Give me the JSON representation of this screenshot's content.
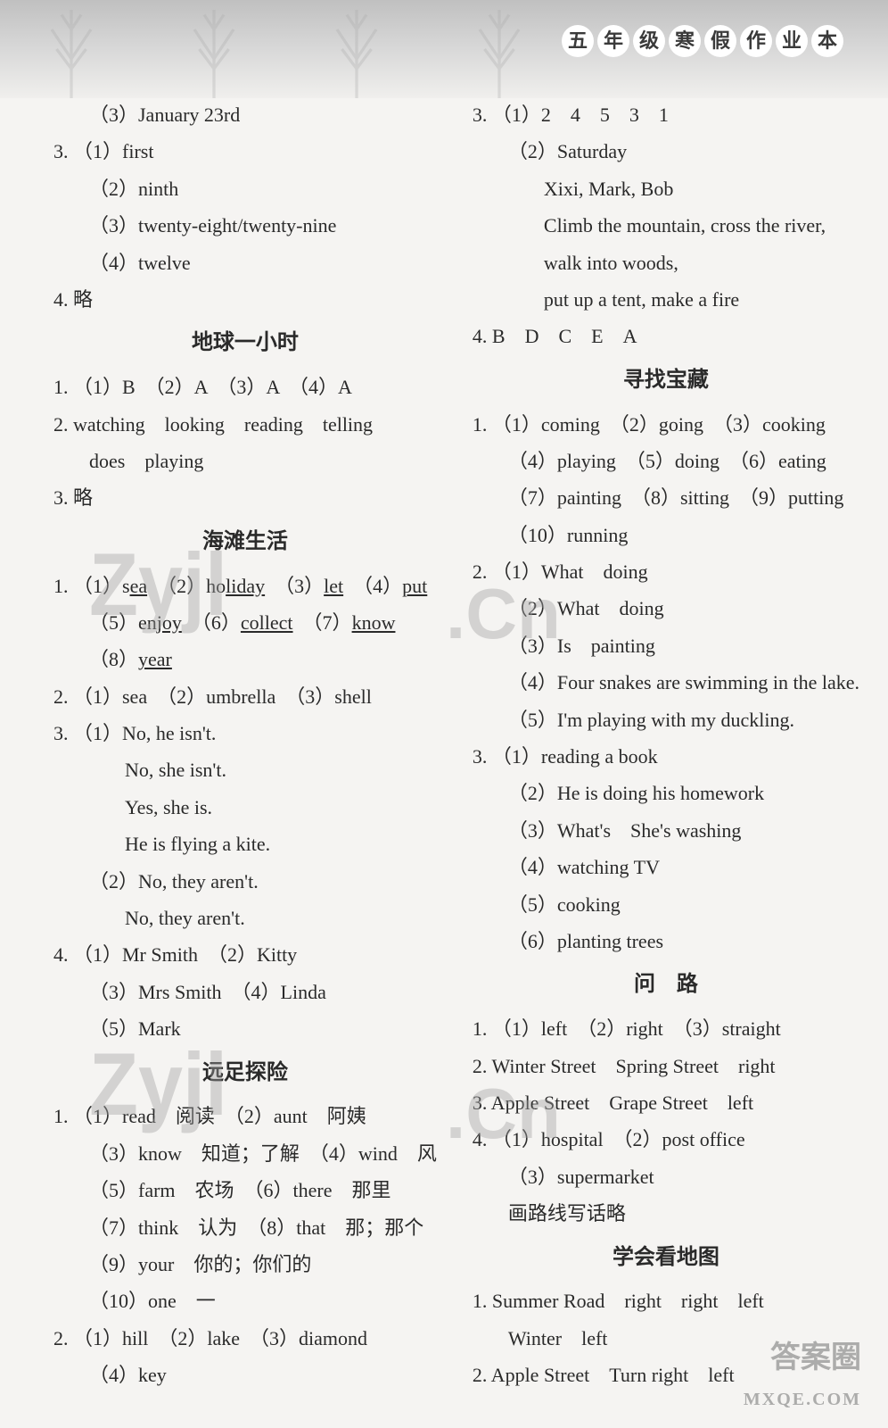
{
  "header": {
    "title_chars": [
      "五",
      "年",
      "级",
      "寒",
      "假",
      "作",
      "业",
      "本"
    ]
  },
  "left": {
    "lines": [
      {
        "cls": "indent-1",
        "t": "（3）January 23rd"
      },
      {
        "cls": "",
        "t": "3. （1）first"
      },
      {
        "cls": "indent-1",
        "t": "（2）ninth"
      },
      {
        "cls": "indent-1",
        "t": "（3）twenty-eight/twenty-nine"
      },
      {
        "cls": "indent-1",
        "t": "（4）twelve"
      },
      {
        "cls": "",
        "t": "4.  略"
      }
    ],
    "section1_title": "地球一小时",
    "section1": [
      {
        "cls": "",
        "t": "1. （1）B　（2）A　（3）A　（4）A"
      },
      {
        "cls": "",
        "t": "2.  watching　looking　reading　telling"
      },
      {
        "cls": "indent-1",
        "t": "does　playing"
      },
      {
        "cls": "",
        "t": "3.  略"
      }
    ],
    "section2_title": "海滩生活",
    "section2": [
      {
        "cls": "",
        "html": "1. （1）s<span class='underline'>ea</span>　（2）ho<span class='underline'>liday</span>　（3）<span class='underline'>let</span>　（4）<span class='underline'>put</span>"
      },
      {
        "cls": "indent-1",
        "html": "（5）en<span class='underline'>joy</span>　（6）<span class='underline'>collect</span>　（7）<span class='underline'>know</span>"
      },
      {
        "cls": "indent-1",
        "html": "（8）<span class='underline'>year</span>"
      },
      {
        "cls": "",
        "t": "2. （1）sea　（2）umbrella　（3）shell"
      },
      {
        "cls": "",
        "t": "3. （1）No, he isn't."
      },
      {
        "cls": "indent-2",
        "t": "No, she isn't."
      },
      {
        "cls": "indent-2",
        "t": "Yes, she is."
      },
      {
        "cls": "indent-2",
        "t": "He is flying a kite."
      },
      {
        "cls": "indent-1",
        "t": "（2）No, they aren't."
      },
      {
        "cls": "indent-2",
        "t": "No, they aren't."
      },
      {
        "cls": "",
        "t": "4. （1）Mr Smith　（2）Kitty"
      },
      {
        "cls": "indent-1",
        "t": "（3）Mrs Smith　（4）Linda"
      },
      {
        "cls": "indent-1",
        "t": "（5）Mark"
      }
    ],
    "section3_title": "远足探险",
    "section3": [
      {
        "cls": "",
        "t": "1. （1）read　阅读　（2）aunt　阿姨"
      },
      {
        "cls": "indent-1",
        "t": "（3）know　知道；了解　（4）wind　风"
      },
      {
        "cls": "indent-1",
        "t": "（5）farm　农场　（6）there　那里"
      },
      {
        "cls": "indent-1",
        "t": "（7）think　认为　（8）that　那；那个"
      },
      {
        "cls": "indent-1",
        "t": "（9）your　你的；你们的"
      },
      {
        "cls": "indent-1",
        "t": "（10）one　一"
      },
      {
        "cls": "",
        "t": "2. （1）hill　（2）lake　（3）diamond"
      },
      {
        "cls": "indent-1",
        "t": "（4）key"
      }
    ]
  },
  "right": {
    "lines": [
      {
        "cls": "",
        "t": "3. （1）2　4　5　3　1"
      },
      {
        "cls": "indent-1",
        "t": "（2）Saturday"
      },
      {
        "cls": "indent-2",
        "t": "Xixi,  Mark,  Bob"
      },
      {
        "cls": "indent-2",
        "t": "Climb the mountain, cross the river,"
      },
      {
        "cls": "indent-2",
        "t": "walk into woods,"
      },
      {
        "cls": "indent-2",
        "t": "put up a tent, make a fire"
      },
      {
        "cls": "",
        "t": "4.  B　D　C　E　A"
      }
    ],
    "section1_title": "寻找宝藏",
    "section1": [
      {
        "cls": "",
        "t": "1. （1）coming　（2）going　（3）cooking"
      },
      {
        "cls": "indent-1",
        "t": "（4）playing　（5）doing　（6）eating"
      },
      {
        "cls": "indent-1",
        "t": "（7）painting　（8）sitting　（9）putting"
      },
      {
        "cls": "indent-1",
        "t": "（10）running"
      },
      {
        "cls": "",
        "t": "2. （1）What　doing"
      },
      {
        "cls": "indent-1",
        "t": "（2）What　doing"
      },
      {
        "cls": "indent-1",
        "t": "（3）Is　painting"
      },
      {
        "cls": "indent-1",
        "t": "（4）Four snakes are swimming in the lake."
      },
      {
        "cls": "indent-1",
        "t": "（5）I'm playing with my duckling."
      },
      {
        "cls": "",
        "t": "3. （1）reading a book"
      },
      {
        "cls": "indent-1",
        "t": "（2）He is doing his homework"
      },
      {
        "cls": "indent-1",
        "t": "（3）What's　She's washing"
      },
      {
        "cls": "indent-1",
        "t": "（4）watching TV"
      },
      {
        "cls": "indent-1",
        "t": "（5）cooking"
      },
      {
        "cls": "indent-1",
        "t": "（6）planting trees"
      }
    ],
    "section2_title": "问　路",
    "section2": [
      {
        "cls": "",
        "t": "1. （1）left　（2）right　（3）straight"
      },
      {
        "cls": "",
        "t": "2.  Winter Street　Spring Street　right"
      },
      {
        "cls": "",
        "t": "3.  Apple Street　Grape Street　left"
      },
      {
        "cls": "",
        "t": "4. （1）hospital　（2）post office"
      },
      {
        "cls": "indent-1",
        "t": "（3）supermarket"
      },
      {
        "cls": "indent-1",
        "t": "画路线写话略"
      }
    ],
    "section3_title": "学会看地图",
    "section3": [
      {
        "cls": "",
        "t": "1.  Summer Road　right　right　left"
      },
      {
        "cls": "indent-1",
        "t": "Winter　left"
      },
      {
        "cls": "",
        "t": "2.  Apple Street　Turn right　left"
      }
    ]
  },
  "watermarks": {
    "w1": "Zyjl",
    "w2": "Zyjl",
    "w3": ".Cn",
    "w4": ".Cn"
  },
  "footer": {
    "brand": "答案圈",
    "url": "MXQE.COM"
  },
  "colors": {
    "bg": "#f5f4f2",
    "text": "#2a2a2a",
    "header_gradient_top": "#c0c0c0",
    "header_gradient_bottom": "#f0efed",
    "divider": "#888"
  }
}
